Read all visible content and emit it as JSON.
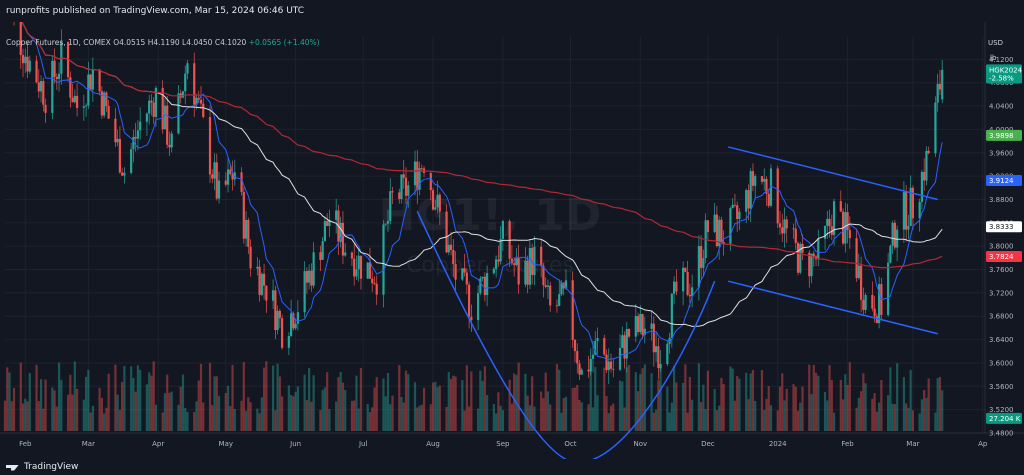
{
  "header": {
    "published": "runprofits published on TradingView.com, Mar 15, 2024 06:46 UTC"
  },
  "legend": {
    "symbol": "Copper Futures, 1D, COMEX",
    "open": "O4.0515",
    "high": "H4.1190",
    "low": "L4.0450",
    "close": "C4.1020",
    "change": "+0.0565 (+1.40%)"
  },
  "axis_labels": {
    "currency": "USD",
    "unit": "lb"
  },
  "watermark": {
    "symbol": "HG1!, 1D",
    "name": "Copper Futures"
  },
  "footer": {
    "brand": "TradingView"
  },
  "price_tags": [
    {
      "label": "HGK2024",
      "value": 4.102,
      "color": "#089981"
    },
    {
      "label": "-2.58%",
      "value": 4.088,
      "color": "#089981"
    },
    {
      "label": "3.9898",
      "value": 3.9898,
      "color": "#4caf50"
    },
    {
      "label": "3.9124",
      "value": 3.9124,
      "color": "#2962ff"
    },
    {
      "label": "3.8333",
      "value": 3.8333,
      "color": "#ffffff"
    },
    {
      "label": "3.7824",
      "value": 3.7824,
      "color": "#f23645"
    },
    {
      "label": "27.204 K",
      "value": 3.505,
      "color": "#089981"
    }
  ],
  "chart_data": {
    "type": "candlestick",
    "ylim": [
      3.48,
      4.16
    ],
    "y_ticks": [
      4.12,
      4.08,
      4.04,
      4.0,
      3.96,
      3.92,
      3.88,
      3.84,
      3.8,
      3.76,
      3.72,
      3.68,
      3.64,
      3.6,
      3.56,
      3.52,
      3.48
    ],
    "x_ticks": [
      "Feb",
      "Mar",
      "Apr",
      "May",
      "Jun",
      "Jul",
      "Aug",
      "Sep",
      "Oct",
      "Nov",
      "Dec",
      "2024",
      "Feb",
      "Mar",
      "Ap"
    ],
    "x_range": [
      "2023-01-23",
      "2024-04-02"
    ],
    "close_series": [
      [
        "2023-01-23",
        4.22
      ],
      [
        "2023-02-01",
        4.13
      ],
      [
        "2023-02-10",
        4.06
      ],
      [
        "2023-02-17",
        4.12
      ],
      [
        "2023-02-24",
        4.04
      ],
      [
        "2023-03-03",
        4.1
      ],
      [
        "2023-03-10",
        4.02
      ],
      [
        "2023-03-17",
        3.93
      ],
      [
        "2023-03-24",
        4.01
      ],
      [
        "2023-03-31",
        4.06
      ],
      [
        "2023-04-07",
        3.97
      ],
      [
        "2023-04-14",
        4.12
      ],
      [
        "2023-04-21",
        4.0
      ],
      [
        "2023-04-28",
        3.88
      ],
      [
        "2023-05-05",
        3.93
      ],
      [
        "2023-05-12",
        3.78
      ],
      [
        "2023-05-19",
        3.73
      ],
      [
        "2023-05-26",
        3.66
      ],
      [
        "2023-06-02",
        3.7
      ],
      [
        "2023-06-09",
        3.77
      ],
      [
        "2023-06-16",
        3.85
      ],
      [
        "2023-06-23",
        3.8
      ],
      [
        "2023-06-30",
        3.77
      ],
      [
        "2023-07-07",
        3.75
      ],
      [
        "2023-07-14",
        3.88
      ],
      [
        "2023-07-21",
        3.9
      ],
      [
        "2023-07-28",
        3.95
      ],
      [
        "2023-08-04",
        3.85
      ],
      [
        "2023-08-11",
        3.75
      ],
      [
        "2023-08-18",
        3.7
      ],
      [
        "2023-08-25",
        3.75
      ],
      [
        "2023-09-01",
        3.81
      ],
      [
        "2023-09-08",
        3.75
      ],
      [
        "2023-09-15",
        3.78
      ],
      [
        "2023-09-22",
        3.69
      ],
      [
        "2023-09-29",
        3.71
      ],
      [
        "2023-10-06",
        3.58
      ],
      [
        "2023-10-13",
        3.63
      ],
      [
        "2023-10-20",
        3.59
      ],
      [
        "2023-10-27",
        3.65
      ],
      [
        "2023-11-03",
        3.66
      ],
      [
        "2023-11-10",
        3.62
      ],
      [
        "2023-11-17",
        3.72
      ],
      [
        "2023-11-24",
        3.74
      ],
      [
        "2023-12-01",
        3.83
      ],
      [
        "2023-12-08",
        3.82
      ],
      [
        "2023-12-15",
        3.85
      ],
      [
        "2023-12-22",
        3.92
      ],
      [
        "2023-12-29",
        3.9
      ],
      [
        "2024-01-05",
        3.82
      ],
      [
        "2024-01-12",
        3.77
      ],
      [
        "2024-01-19",
        3.78
      ],
      [
        "2024-01-26",
        3.86
      ],
      [
        "2024-02-02",
        3.81
      ],
      [
        "2024-02-09",
        3.71
      ],
      [
        "2024-02-16",
        3.7
      ],
      [
        "2024-02-23",
        3.85
      ],
      [
        "2024-03-01",
        3.87
      ],
      [
        "2024-03-08",
        3.96
      ],
      [
        "2024-03-14",
        4.102
      ]
    ]
  }
}
